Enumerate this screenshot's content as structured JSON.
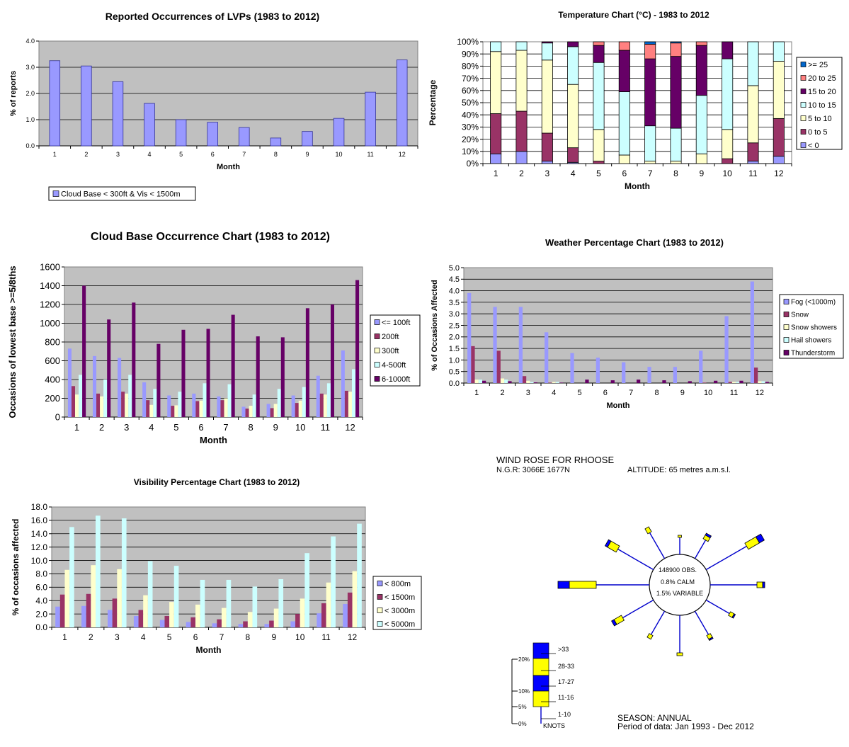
{
  "months": [
    "1",
    "2",
    "3",
    "4",
    "5",
    "6",
    "7",
    "8",
    "9",
    "10",
    "11",
    "12"
  ],
  "chart_data": [
    {
      "id": "lvp",
      "type": "bar",
      "title": "Reported Occurrences of LVPs (1983 to 2012)",
      "xlabel": "Month",
      "ylabel": "% of reports",
      "ylim": [
        0,
        4
      ],
      "yticks": [
        "0.0",
        "1.0",
        "2.0",
        "3.0",
        "4.0"
      ],
      "legend_position": "bottom-left",
      "series": [
        {
          "name": "Cloud Base < 300ft & Vis < 1500m",
          "color": "#9999ff",
          "values": [
            3.25,
            3.05,
            2.45,
            1.62,
            1.0,
            0.9,
            0.7,
            0.3,
            0.55,
            1.05,
            2.05,
            3.28
          ]
        }
      ]
    },
    {
      "id": "temp",
      "type": "bar",
      "stacked": true,
      "title": "Temperature Chart (°C) - 1983 to 2012",
      "xlabel": "Month",
      "ylabel": "Percentage",
      "ylim": [
        0,
        100
      ],
      "yticks": [
        "0%",
        "10%",
        "20%",
        "30%",
        "40%",
        "50%",
        "60%",
        "70%",
        "80%",
        "90%",
        "100%"
      ],
      "legend_position": "right",
      "series": [
        {
          "name": "< 0",
          "color": "#9999ff",
          "values": [
            8,
            10,
            2,
            1,
            0,
            0,
            0,
            0,
            0,
            0,
            2,
            6
          ]
        },
        {
          "name": "0 to 5",
          "color": "#993366",
          "values": [
            33,
            33,
            23,
            12,
            2,
            0,
            0,
            0,
            0,
            4,
            15,
            31
          ]
        },
        {
          "name": "5 to 10",
          "color": "#ffffcc",
          "values": [
            51,
            50,
            60,
            52,
            26,
            7,
            2,
            2,
            8,
            24,
            47,
            47
          ]
        },
        {
          "name": "10 to 15",
          "color": "#ccffff",
          "values": [
            8,
            7,
            14,
            31,
            55,
            52,
            29,
            27,
            48,
            58,
            36,
            16
          ]
        },
        {
          "name": "15 to 20",
          "color": "#660066",
          "values": [
            0,
            0,
            1,
            4,
            14,
            34,
            55,
            59,
            41,
            14,
            0,
            0
          ]
        },
        {
          "name": "20 to 25",
          "color": "#ff8080",
          "values": [
            0,
            0,
            0,
            0,
            3,
            7,
            12,
            11,
            3,
            0,
            0,
            0
          ]
        },
        {
          "name": ">= 25",
          "color": "#0066cc",
          "values": [
            0,
            0,
            0,
            0,
            0,
            0,
            2,
            1,
            0,
            0,
            0,
            0
          ]
        }
      ]
    },
    {
      "id": "cloud",
      "type": "bar",
      "title": "Cloud Base Occurrence Chart (1983 to 2012)",
      "xlabel": "Month",
      "ylabel": "Occasions of lowest base >=5/8ths",
      "ylim": [
        0,
        1600
      ],
      "yticks": [
        "0",
        "200",
        "400",
        "600",
        "800",
        "1000",
        "1200",
        "1400",
        "1600"
      ],
      "legend_position": "right",
      "series": [
        {
          "name": "<= 100ft",
          "color": "#9999ff",
          "values": [
            730,
            650,
            630,
            370,
            230,
            250,
            220,
            110,
            140,
            230,
            440,
            710
          ]
        },
        {
          "name": "200ft",
          "color": "#993366",
          "values": [
            330,
            250,
            270,
            180,
            120,
            170,
            180,
            90,
            95,
            150,
            250,
            280
          ]
        },
        {
          "name": "300ft",
          "color": "#ffffcc",
          "values": [
            240,
            220,
            250,
            130,
            125,
            175,
            200,
            120,
            140,
            175,
            240,
            270
          ]
        },
        {
          "name": "4-500ft",
          "color": "#ccffff",
          "values": [
            450,
            400,
            450,
            300,
            270,
            360,
            350,
            240,
            300,
            320,
            360,
            510
          ]
        },
        {
          "name": "6-1000ft",
          "color": "#660066",
          "values": [
            1400,
            1040,
            1220,
            780,
            930,
            940,
            1090,
            860,
            850,
            1160,
            1200,
            1460
          ]
        }
      ]
    },
    {
      "id": "weather",
      "type": "bar",
      "title": "Weather Percentage Chart (1983 to 2012)",
      "xlabel": "Month",
      "ylabel": "% of Occasions Affected",
      "ylim": [
        0,
        5
      ],
      "yticks": [
        "0.0",
        "0.5",
        "1.0",
        "1.5",
        "2.0",
        "2.5",
        "3.0",
        "3.5",
        "4.0",
        "4.5",
        "5.0"
      ],
      "legend_position": "right",
      "series": [
        {
          "name": "Fog (<1000m)",
          "color": "#9999ff",
          "values": [
            3.9,
            3.3,
            3.3,
            2.2,
            1.3,
            1.1,
            0.9,
            0.7,
            0.7,
            1.4,
            2.9,
            4.4
          ]
        },
        {
          "name": "Snow",
          "color": "#993366",
          "values": [
            1.6,
            1.4,
            0.3,
            0.02,
            0,
            0,
            0,
            0,
            0,
            0.02,
            0.05,
            0.67
          ]
        },
        {
          "name": "Snow showers",
          "color": "#ffffcc",
          "values": [
            0.15,
            0.2,
            0.1,
            0.05,
            0,
            0,
            0,
            0,
            0,
            0,
            0.05,
            0.08
          ]
        },
        {
          "name": "Hail showers",
          "color": "#ccffff",
          "values": [
            0.15,
            0.15,
            0.05,
            0.05,
            0,
            0,
            0,
            0,
            0,
            0,
            0.05,
            0.08
          ]
        },
        {
          "name": "Thunderstorm",
          "color": "#660066",
          "values": [
            0.1,
            0.08,
            0.03,
            0.02,
            0.15,
            0.12,
            0.15,
            0.12,
            0.08,
            0.1,
            0.1,
            0.05
          ]
        }
      ]
    },
    {
      "id": "vis",
      "type": "bar",
      "title": "Visibility Percentage Chart (1983 to 2012)",
      "xlabel": "Month",
      "ylabel": "% of occasions affected",
      "ylim": [
        0,
        18
      ],
      "yticks": [
        "0.0",
        "2.0",
        "4.0",
        "6.0",
        "8.0",
        "10.0",
        "12.0",
        "14.0",
        "16.0",
        "18.0"
      ],
      "legend_position": "right",
      "series": [
        {
          "name": "< 800m",
          "color": "#9999ff",
          "values": [
            3.1,
            3.2,
            2.6,
            1.7,
            1.1,
            0.8,
            0.6,
            0.5,
            0.5,
            0.9,
            2.1,
            3.5
          ]
        },
        {
          "name": "< 1500m",
          "color": "#993366",
          "values": [
            4.9,
            5.0,
            4.3,
            2.6,
            1.7,
            1.5,
            1.2,
            0.9,
            1.0,
            2.0,
            3.6,
            5.2
          ]
        },
        {
          "name": "< 3000m",
          "color": "#ffffcc",
          "values": [
            8.6,
            9.3,
            8.7,
            4.8,
            3.8,
            3.4,
            2.9,
            2.3,
            2.8,
            4.3,
            6.7,
            8.4
          ]
        },
        {
          "name": "< 5000m",
          "color": "#ccffff",
          "values": [
            15.0,
            16.7,
            16.3,
            9.9,
            9.2,
            7.1,
            7.1,
            6.1,
            7.2,
            11.1,
            13.6,
            15.5
          ]
        }
      ]
    }
  ],
  "wind_rose": {
    "title": "WIND ROSE FOR RHOOSE",
    "ngr": "N.G.R: 3066E 1677N",
    "altitude": "ALTITUDE:   65 metres a.m.s.l.",
    "center_lines": [
      "148900 OBS.",
      "0.8% CALM",
      "1.5% VARIABLE"
    ],
    "season": "SEASON: ANNUAL",
    "period": "Period of data: Jan 1993 - Dec 2012",
    "scale_labels": [
      "20%",
      "10%",
      "5%",
      "0%"
    ],
    "speed_labels": [
      ">33",
      "28-33",
      "17-27",
      "11-16",
      "1-10"
    ],
    "units": "KNOTS",
    "colors": {
      "blue": "#0000ff",
      "yellow": "#ffff00"
    }
  }
}
